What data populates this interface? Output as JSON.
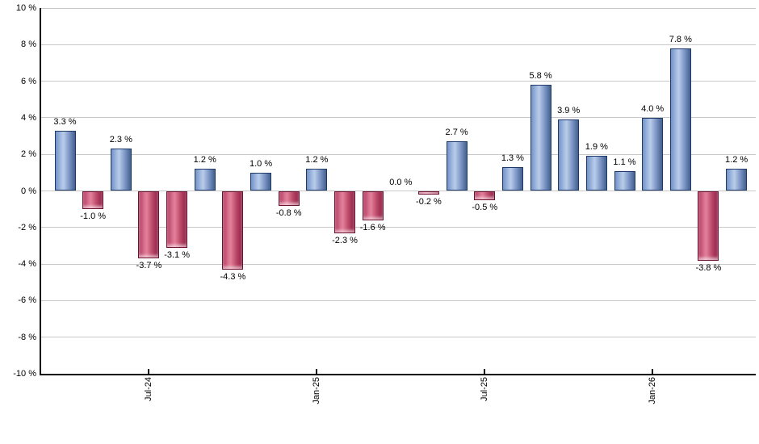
{
  "chart_data": {
    "type": "bar",
    "title": "",
    "xlabel": "",
    "ylabel": "",
    "ylim": [
      -10,
      10
    ],
    "grid": true,
    "legend": "none",
    "y_tick_labels": [
      "10 %",
      "8 %",
      "6 %",
      "4 %",
      "2 %",
      "0 %",
      "-2 %",
      "-4 %",
      "-6 %",
      "-8 %",
      "-10 %"
    ],
    "y_tick_values": [
      10,
      8,
      6,
      4,
      2,
      0,
      -2,
      -4,
      -6,
      -8,
      -10
    ],
    "x_ticks": [
      {
        "index": 3,
        "label": "Jul-24"
      },
      {
        "index": 9,
        "label": "Jan-25"
      },
      {
        "index": 15,
        "label": "Jul-25"
      },
      {
        "index": 21,
        "label": "Jan-26"
      }
    ],
    "values": [
      3.3,
      -1.0,
      2.3,
      -3.7,
      -3.1,
      1.2,
      -4.3,
      1.0,
      -0.8,
      1.2,
      -2.3,
      -1.6,
      0.0,
      -0.2,
      2.7,
      -0.5,
      1.3,
      5.8,
      3.9,
      1.9,
      1.1,
      4.0,
      7.8,
      -3.8,
      1.2
    ],
    "bar_labels": [
      "3.3 %",
      "-1.0 %",
      "2.3 %",
      "-3.7 %",
      "-3.1 %",
      "1.2 %",
      "-4.3 %",
      "1.0 %",
      "-0.8 %",
      "1.2 %",
      "-2.3 %",
      "-1.6 %",
      "0.0 %",
      "-0.2 %",
      "2.7 %",
      "-0.5 %",
      "1.3 %",
      "5.8 %",
      "3.9 %",
      "1.9 %",
      "1.1 %",
      "4.0 %",
      "7.8 %",
      "-3.8 %",
      "1.2 %"
    ],
    "colors": {
      "positive_gradient": [
        "#7292c6",
        "#a9c0e4",
        "#b9cce9",
        "#7b95c4",
        "#44608f"
      ],
      "positive_border": "#1e3a68",
      "negative_gradient": [
        "#b03a60",
        "#db7492",
        "#e28099",
        "#b94768",
        "#8e1f44"
      ],
      "negative_border": "#6d1230",
      "gridline": "#c8c8c8",
      "axis": "#000000",
      "label_text": "#000000",
      "background": "#ffffff"
    }
  }
}
